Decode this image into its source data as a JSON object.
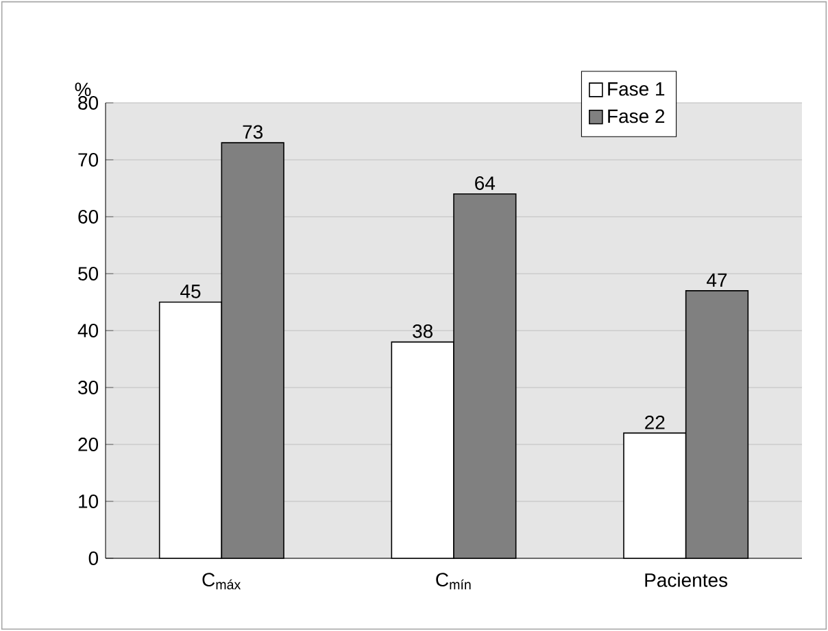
{
  "chart_data": {
    "type": "bar",
    "ylabel": "%",
    "categories": [
      "C$_{máx}$",
      "C$_{mín}$",
      "Pacientes"
    ],
    "series": [
      {
        "name": "Fase 1",
        "color": "#ffffff",
        "values": [
          45,
          38,
          22
        ]
      },
      {
        "name": "Fase 2",
        "color": "#808080",
        "values": [
          73,
          64,
          47
        ]
      }
    ],
    "ylim": [
      0,
      80
    ],
    "yticks": [
      0,
      10,
      20,
      30,
      40,
      50,
      60,
      70,
      80
    ],
    "grid": "y",
    "legend": "top right",
    "data_labels": true
  }
}
